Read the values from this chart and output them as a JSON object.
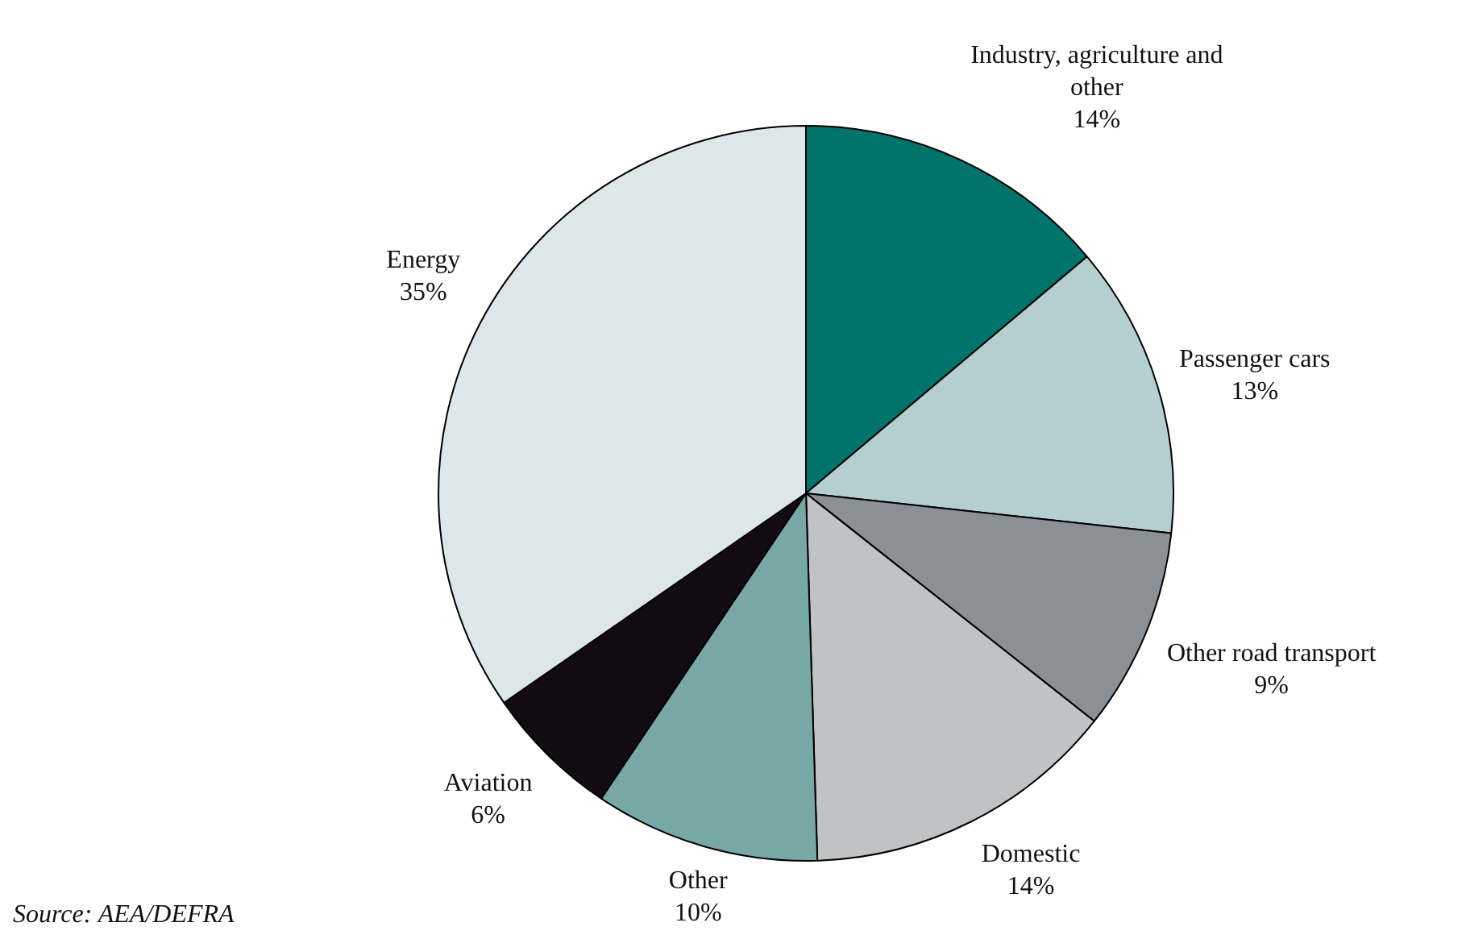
{
  "chart_data": {
    "type": "pie",
    "categories": [
      "Industry, agriculture and other",
      "Passenger cars",
      "Other road transport",
      "Domestic",
      "Other",
      "Aviation",
      "Energy"
    ],
    "values": [
      14,
      13,
      9,
      14,
      10,
      6,
      35
    ],
    "colors": [
      "#00736a",
      "#b5cfd0",
      "#8a9093",
      "#c0c3c5",
      "#77a8a6",
      "#120c12",
      "#dde6e8"
    ],
    "value_labels": [
      "14%",
      "13%",
      "9%",
      "14%",
      "10%",
      "6%",
      "35%"
    ],
    "legend": false,
    "annotations": [
      "Source: AEA/DEFRA"
    ]
  }
}
